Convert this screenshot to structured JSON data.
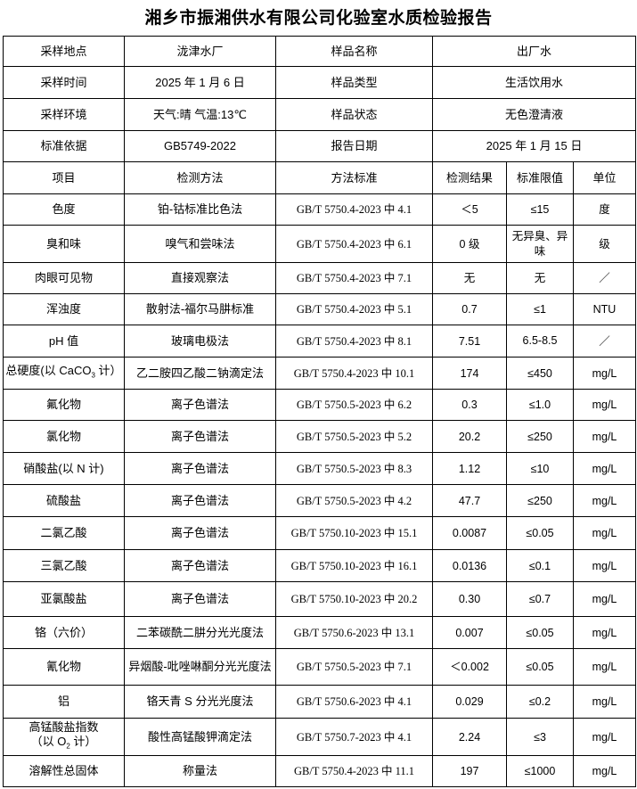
{
  "title": "湘乡市振湘供水有限公司化验室水质检验报告",
  "info_rows": [
    [
      "采样地点",
      "泷津水厂",
      "样品名称",
      "出厂水"
    ],
    [
      "采样时间",
      "2025 年 1 月 6 日",
      "样品类型",
      "生活饮用水"
    ],
    [
      "采样环境",
      "天气:晴  气温:13℃",
      "样品状态",
      "无色澄清液"
    ],
    [
      "标准依据",
      "GB5749-2022",
      "报告日期",
      "2025 年 1 月 15 日"
    ]
  ],
  "headers": [
    "项目",
    "检测方法",
    "方法标准",
    "检测结果",
    "标准限值",
    "单位"
  ],
  "rows": [
    {
      "item": "色度",
      "method": "铂-钴标准比色法",
      "standard": "GB/T 5750.4-2023 中 4.1",
      "result": "＜5",
      "limit": "≤15",
      "unit": "度"
    },
    {
      "item": "臭和味",
      "method": "嗅气和尝味法",
      "standard": "GB/T 5750.4-2023 中 6.1",
      "result": "0 级",
      "limit": "无异臭、异味",
      "unit": "级"
    },
    {
      "item": "肉眼可见物",
      "method": "直接观察法",
      "standard": "GB/T 5750.4-2023 中 7.1",
      "result": "无",
      "limit": "无",
      "unit": "／"
    },
    {
      "item": "浑浊度",
      "method": "散射法-福尔马肼标准",
      "standard": "GB/T 5750.4-2023 中 5.1",
      "result": "0.7",
      "limit": "≤1",
      "unit": "NTU"
    },
    {
      "item": "pH 值",
      "method": "玻璃电极法",
      "standard": "GB/T 5750.4-2023 中 8.1",
      "result": "7.51",
      "limit": "6.5-8.5",
      "unit": "／"
    },
    {
      "item": "总硬度(以 CaCO3 计）",
      "item_html": "总硬度(以 CaCO<sub>3</sub> 计）",
      "method": "乙二胺四乙酸二钠滴定法",
      "standard": "GB/T 5750.4-2023 中 10.1",
      "result": "174",
      "limit": "≤450",
      "unit": "mg/L"
    },
    {
      "item": "氟化物",
      "method": "离子色谱法",
      "standard": "GB/T 5750.5-2023 中 6.2",
      "result": "0.3",
      "limit": "≤1.0",
      "unit": "mg/L"
    },
    {
      "item": "氯化物",
      "method": "离子色谱法",
      "standard": "GB/T 5750.5-2023 中 5.2",
      "result": "20.2",
      "limit": "≤250",
      "unit": "mg/L"
    },
    {
      "item": "硝酸盐(以 N 计)",
      "method": "离子色谱法",
      "standard": "GB/T 5750.5-2023 中 8.3",
      "result": "1.12",
      "limit": "≤10",
      "unit": "mg/L"
    },
    {
      "item": "硫酸盐",
      "method": "离子色谱法",
      "standard": "GB/T 5750.5-2023 中 4.2",
      "result": "47.7",
      "limit": "≤250",
      "unit": "mg/L"
    },
    {
      "item": "二氯乙酸",
      "method": "离子色谱法",
      "standard": "GB/T 5750.10-2023 中 15.1",
      "result": "0.0087",
      "limit": "≤0.05",
      "unit": "mg/L"
    },
    {
      "item": "三氯乙酸",
      "method": "离子色谱法",
      "standard": "GB/T 5750.10-2023 中 16.1",
      "result": "0.0136",
      "limit": "≤0.1",
      "unit": "mg/L"
    },
    {
      "item": "亚氯酸盐",
      "method": "离子色谱法",
      "standard": "GB/T 5750.10-2023 中 20.2",
      "result": "0.30",
      "limit": "≤0.7",
      "unit": "mg/L"
    },
    {
      "item": "铬（六价）",
      "method": "二苯碳酰二肼分光光度法",
      "standard": "GB/T 5750.6-2023 中 13.1",
      "result": "0.007",
      "limit": "≤0.05",
      "unit": "mg/L"
    },
    {
      "item": "氰化物",
      "method": "异烟酸-吡唑啉酮分光光度法",
      "standard": "GB/T 5750.5-2023 中 7.1",
      "result": "＜0.002",
      "limit": "≤0.05",
      "unit": "mg/L"
    },
    {
      "item": "铝",
      "method": "铬天青 S 分光光度法",
      "standard": "GB/T 5750.6-2023 中 4.1",
      "result": "0.029",
      "limit": "≤0.2",
      "unit": "mg/L"
    },
    {
      "item": "高锰酸盐指数（以 O2 计）",
      "item_html": "高锰酸盐指数<br>（以 O<sub>2</sub> 计）",
      "method": "酸性高锰酸钾滴定法",
      "standard": "GB/T 5750.7-2023 中 4.1",
      "result": "2.24",
      "limit": "≤3",
      "unit": "mg/L"
    },
    {
      "item": "溶解性总固体",
      "method": "称量法",
      "standard": "GB/T 5750.4-2023 中 11.1",
      "result": "197",
      "limit": "≤1000",
      "unit": "mg/L"
    }
  ]
}
